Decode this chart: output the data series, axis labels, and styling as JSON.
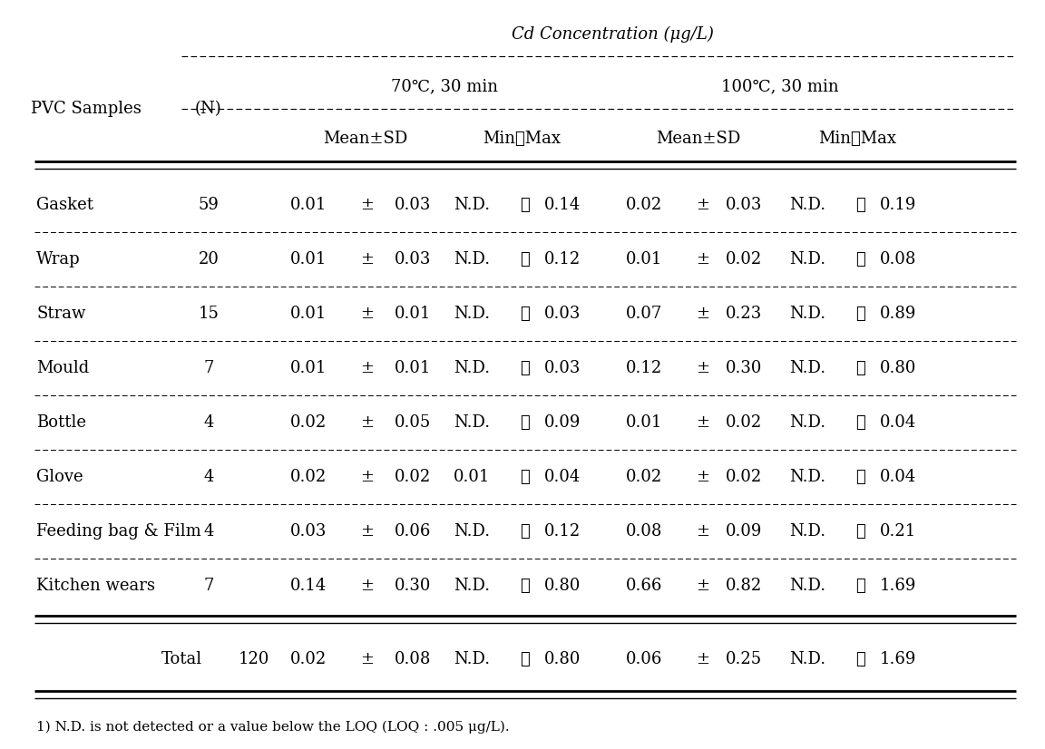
{
  "title": "Cd Concentration (μg/L)",
  "pvc_label": "PVC Samples",
  "n_label": "(N)",
  "temp70_label": "70℃, 30 min",
  "temp100_label": "100℃, 30 min",
  "meansd_label": "Mean±SD",
  "minmax_label": "Min～Max",
  "rows": [
    [
      "Gasket",
      "59",
      "0.01",
      "±",
      "0.03",
      "N.D.",
      "～",
      "0.14",
      "0.02",
      "±",
      "0.03",
      "N.D.",
      "～",
      "0.19"
    ],
    [
      "Wrap",
      "20",
      "0.01",
      "±",
      "0.03",
      "N.D.",
      "～",
      "0.12",
      "0.01",
      "±",
      "0.02",
      "N.D.",
      "～",
      "0.08"
    ],
    [
      "Straw",
      "15",
      "0.01",
      "±",
      "0.01",
      "N.D.",
      "～",
      "0.03",
      "0.07",
      "±",
      "0.23",
      "N.D.",
      "～",
      "0.89"
    ],
    [
      "Mould",
      "7",
      "0.01",
      "±",
      "0.01",
      "N.D.",
      "～",
      "0.03",
      "0.12",
      "±",
      "0.30",
      "N.D.",
      "～",
      "0.80"
    ],
    [
      "Bottle",
      "4",
      "0.02",
      "±",
      "0.05",
      "N.D.",
      "～",
      "0.09",
      "0.01",
      "±",
      "0.02",
      "N.D.",
      "～",
      "0.04"
    ],
    [
      "Glove",
      "4",
      "0.02",
      "±",
      "0.02",
      "0.01",
      "～",
      "0.04",
      "0.02",
      "±",
      "0.02",
      "N.D.",
      "～",
      "0.04"
    ],
    [
      "Feeding bag & Film",
      "4",
      "0.03",
      "±",
      "0.06",
      "N.D.",
      "～",
      "0.12",
      "0.08",
      "±",
      "0.09",
      "N.D.",
      "～",
      "0.21"
    ],
    [
      "Kitchen wears",
      "7",
      "0.14",
      "±",
      "0.30",
      "N.D.",
      "～",
      "0.80",
      "0.66",
      "±",
      "0.82",
      "N.D.",
      "～",
      "1.69"
    ]
  ],
  "total_row": [
    "Total",
    "120",
    "0.02",
    "±",
    "0.08",
    "N.D.",
    "～",
    "0.80",
    "0.06",
    "±",
    "0.25",
    "N.D.",
    "～",
    "1.69"
  ],
  "footnote_super": "1)",
  "footnote_text": " N.D. is not detected or a value below the LOQ (LOQ : .005 μg/L).",
  "bg_color": "#ffffff",
  "text_color": "#000000",
  "font_size": 13,
  "title_font_size": 13
}
